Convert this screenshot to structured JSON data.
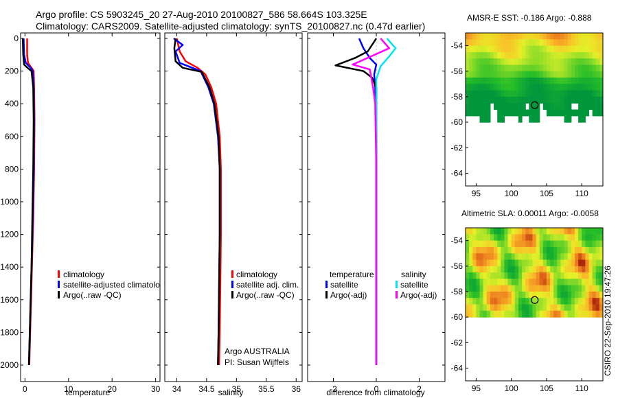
{
  "figure": {
    "title_line1": "Argo profile: CS 5903245_20 27-Aug-2010 20100827_586 58.664S 103.325E",
    "title_line2": "Climatology: CARS2009. Satellite-adjusted climatology: synTS_20100827.nc (0.47d earlier)",
    "credit": "CSIRO 22-Sep-2010 19:47:26",
    "float_info_line1": "Argo AUSTRALIA",
    "float_info_line2": "PI: Susan Wijffels"
  },
  "colors": {
    "climatology": "#ff0000",
    "satellite": "#0000ff",
    "argo": "#000000",
    "sal_satellite": "#00e5ee",
    "sal_argo": "#ff00ff"
  },
  "chart_data": [
    {
      "type": "line",
      "id": "temperature",
      "title": "",
      "xlabel": "temperature",
      "ylabel": "",
      "xlim": [
        -1,
        31
      ],
      "ylim": [
        2050,
        0
      ],
      "xticks": [
        "0",
        "10",
        "20",
        "30"
      ],
      "xtick_values": [
        0,
        10,
        20,
        30
      ],
      "yticks": [
        "0",
        "200",
        "400",
        "600",
        "800",
        "1000",
        "1200",
        "1400",
        "1600",
        "1800",
        "2000"
      ],
      "ytick_values": [
        0,
        200,
        400,
        600,
        800,
        1000,
        1200,
        1400,
        1600,
        1800,
        2000
      ],
      "legend": [
        "climatology",
        "satellite-adjusted climatology",
        "Argo(..raw -QC)"
      ],
      "legend_display": [
        "climatology",
        "satellite-adjusted climatolo",
        "Argo(..raw -QC)"
      ],
      "series": [
        {
          "name": "climatology",
          "x": [
            0.5,
            0.5,
            0.7,
            1.5,
            2.0,
            2.1,
            2.2,
            2.1,
            1.9,
            1.6,
            1.3,
            1.0
          ],
          "y": [
            0,
            100,
            150,
            180,
            200,
            300,
            500,
            800,
            1100,
            1400,
            1700,
            2000
          ]
        },
        {
          "name": "satellite-adjusted climatology",
          "x": [
            -0.3,
            -0.2,
            0.2,
            1.3,
            1.8,
            2.0,
            2.1,
            2.0,
            1.8,
            1.5,
            1.2,
            0.9
          ],
          "y": [
            0,
            100,
            150,
            180,
            200,
            300,
            500,
            800,
            1100,
            1400,
            1700,
            2000
          ]
        },
        {
          "name": "Argo(..raw -QC)",
          "x": [
            -0.5,
            -0.4,
            -0.2,
            0.6,
            1.5,
            1.9,
            2.0,
            1.9,
            1.7,
            1.5,
            1.2,
            0.9
          ],
          "y": [
            0,
            100,
            160,
            180,
            200,
            300,
            500,
            800,
            1100,
            1400,
            1700,
            2000
          ]
        }
      ]
    },
    {
      "type": "line",
      "id": "salinity",
      "title": "",
      "xlabel": "salinity",
      "ylabel": "",
      "xlim": [
        33.8,
        36.1
      ],
      "ylim": [
        2050,
        0
      ],
      "xticks": [
        "34",
        "34.5",
        "35",
        "35.5",
        "36"
      ],
      "xtick_values": [
        34,
        34.5,
        35,
        35.5,
        36
      ],
      "legend": [
        "climatology",
        "satellite adj. clim.",
        "Argo(..raw -QC)"
      ],
      "series": [
        {
          "name": "climatology",
          "x": [
            34.0,
            34.05,
            34.15,
            34.35,
            34.48,
            34.58,
            34.66,
            34.72,
            34.74,
            34.74,
            34.73,
            34.72,
            34.71
          ],
          "y": [
            0,
            80,
            140,
            180,
            220,
            300,
            400,
            600,
            800,
            1200,
            1500,
            1800,
            2000
          ]
        },
        {
          "name": "satellite adj. clim.",
          "x": [
            33.95,
            34.1,
            33.98,
            34.05,
            34.4,
            34.53,
            34.62,
            34.69,
            34.72,
            34.72,
            34.71,
            34.7,
            34.69
          ],
          "y": [
            0,
            40,
            80,
            150,
            200,
            300,
            400,
            600,
            800,
            1200,
            1500,
            1800,
            2000
          ]
        },
        {
          "name": "Argo(..raw -QC)",
          "x": [
            33.98,
            33.96,
            33.98,
            34.1,
            34.42,
            34.55,
            34.63,
            34.7,
            34.72,
            34.72,
            34.71,
            34.7,
            34.69
          ],
          "y": [
            0,
            60,
            140,
            180,
            205,
            300,
            400,
            600,
            800,
            1200,
            1500,
            1800,
            2000
          ]
        }
      ]
    },
    {
      "type": "line",
      "id": "difference",
      "title": "",
      "xlabel": "difference from climatology",
      "ylabel": "",
      "xlim": [
        -3.2,
        3.2
      ],
      "ylim": [
        2050,
        0
      ],
      "xticks": [
        "-2",
        "0",
        "2"
      ],
      "xtick_values": [
        -2,
        0,
        2
      ],
      "legend_temperature_title": "temperature",
      "legend_salinity_title": "salinity",
      "legend": [
        "satellite",
        "Argo(-adj)",
        "satellite",
        "Argo(-adj)"
      ],
      "series": [
        {
          "name": "temperature satellite",
          "x": [
            -0.8,
            -0.6,
            -0.3,
            0.0,
            -0.1,
            -0.05,
            0.0,
            0.0,
            0.0
          ],
          "y": [
            0,
            60,
            120,
            160,
            220,
            300,
            600,
            1200,
            2000
          ]
        },
        {
          "name": "temperature Argo(-adj)",
          "x": [
            0.0,
            -0.4,
            -1.0,
            -1.9,
            -0.6,
            -0.2,
            0.0,
            0.0,
            0.0
          ],
          "y": [
            0,
            80,
            120,
            165,
            200,
            240,
            300,
            600,
            2000
          ]
        },
        {
          "name": "salinity satellite",
          "x": [
            0.5,
            0.9,
            0.6,
            0.2,
            0.0,
            0.0,
            0.0,
            0.0
          ],
          "y": [
            0,
            60,
            110,
            170,
            250,
            400,
            800,
            2000
          ]
        },
        {
          "name": "salinity Argo(-adj)",
          "x": [
            0.2,
            0.6,
            -1.1,
            -0.3,
            -0.15,
            -0.05,
            0.0,
            0.0
          ],
          "y": [
            0,
            60,
            160,
            190,
            300,
            400,
            800,
            2000
          ]
        }
      ]
    },
    {
      "type": "heatmap",
      "id": "sst_map",
      "title": "AMSR-E SST: -0.186 Argo: -0.888",
      "xlim": [
        93.5,
        113
      ],
      "ylim": [
        -65,
        -53
      ],
      "xticks": [
        "95",
        "100",
        "105",
        "110"
      ],
      "xtick_values": [
        95,
        100,
        105,
        110
      ],
      "yticks": [
        "-54",
        "-56",
        "-58",
        "-60",
        "-62",
        "-64"
      ],
      "ytick_values": [
        -54,
        -56,
        -58,
        -60,
        -62,
        -64
      ],
      "marker": {
        "lon": 103.325,
        "lat": -58.664
      }
    },
    {
      "type": "heatmap",
      "id": "sla_map",
      "title": "Altimetric SLA: 0.00011 Argo: -0.0058",
      "xlim": [
        93.5,
        113
      ],
      "ylim": [
        -65,
        -53
      ],
      "xticks": [
        "95",
        "100",
        "105",
        "110"
      ],
      "xtick_values": [
        95,
        100,
        105,
        110
      ],
      "yticks": [
        "-54",
        "-56",
        "-58",
        "-60",
        "-62",
        "-64"
      ],
      "ytick_values": [
        -54,
        -56,
        -58,
        -60,
        -62,
        -64
      ],
      "marker": {
        "lon": 103.325,
        "lat": -58.664
      }
    }
  ]
}
